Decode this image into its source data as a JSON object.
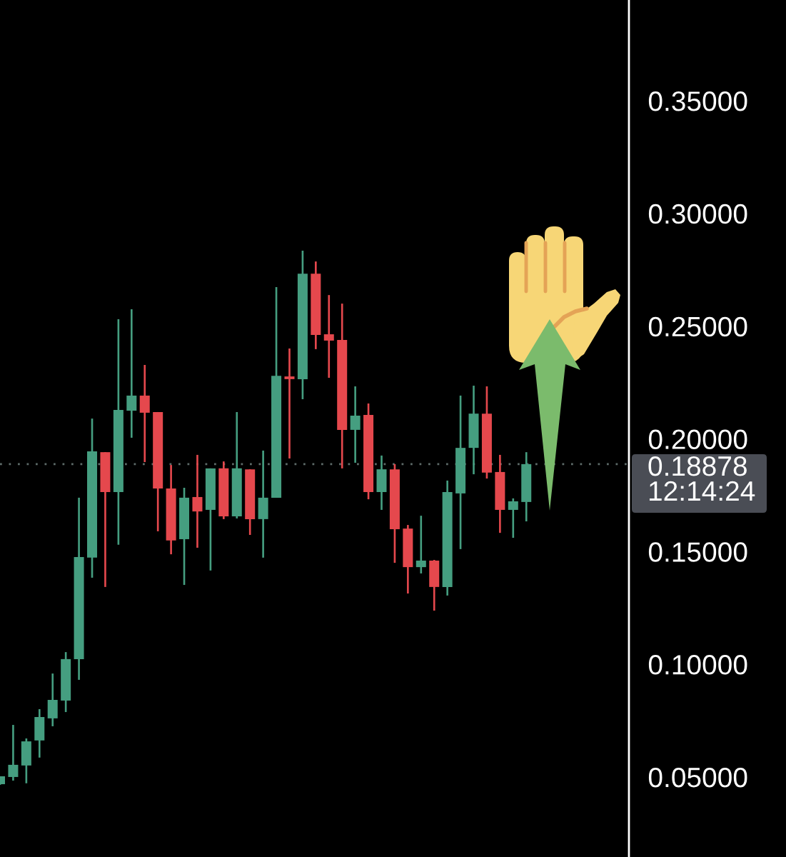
{
  "chart_data": {
    "type": "candlestick",
    "categories": [
      null,
      null,
      null,
      null,
      null,
      null,
      null,
      null,
      null,
      null,
      null,
      null,
      null,
      null,
      null,
      null,
      null,
      null,
      null,
      null,
      null,
      null,
      null,
      null,
      null,
      null,
      null,
      null,
      null,
      null,
      null,
      null,
      null,
      null,
      null,
      null,
      null,
      null,
      null,
      null,
      null
    ],
    "ohlc": [
      [
        0.0468,
        0.0503,
        0.0465,
        0.0503
      ],
      [
        0.05,
        0.0731,
        0.0484,
        0.0554
      ],
      [
        0.0551,
        0.0671,
        0.0472,
        0.0658
      ],
      [
        0.0662,
        0.0801,
        0.0586,
        0.0766
      ],
      [
        0.076,
        0.0959,
        0.0725,
        0.0842
      ],
      [
        0.0839,
        0.1054,
        0.0788,
        0.1023
      ],
      [
        0.1023,
        0.1739,
        0.0931,
        0.1476
      ],
      [
        0.1473,
        0.209,
        0.1384,
        0.1945
      ],
      [
        0.1941,
        0.1941,
        0.1343,
        0.1764
      ],
      [
        0.1764,
        0.2531,
        0.153,
        0.2128
      ],
      [
        0.2125,
        0.2575,
        0.2005,
        0.2192
      ],
      [
        0.2192,
        0.2328,
        0.1897,
        0.2116
      ],
      [
        0.2119,
        0.2119,
        0.159,
        0.178
      ],
      [
        0.178,
        0.1884,
        0.1488,
        0.1549
      ],
      [
        0.1555,
        0.1783,
        0.1352,
        0.1739
      ],
      [
        0.1742,
        0.1929,
        0.1517,
        0.1678
      ],
      [
        0.1685,
        0.1869,
        0.1416,
        0.1869
      ],
      [
        0.1869,
        0.19,
        0.1644,
        0.1656
      ],
      [
        0.1656,
        0.2119,
        0.1647,
        0.1869
      ],
      [
        0.1865,
        0.1865,
        0.1574,
        0.1644
      ],
      [
        0.1644,
        0.1948,
        0.1473,
        0.1739
      ],
      [
        0.1739,
        0.2673,
        0.1739,
        0.228
      ],
      [
        0.2277,
        0.2401,
        0.1913,
        0.2265
      ],
      [
        0.2265,
        0.2835,
        0.2176,
        0.2733
      ],
      [
        0.2733,
        0.2787,
        0.2398,
        0.2461
      ],
      [
        0.2464,
        0.2638,
        0.2271,
        0.2436
      ],
      [
        0.2439,
        0.26,
        0.1869,
        0.204
      ],
      [
        0.204,
        0.2233,
        0.1894,
        0.2103
      ],
      [
        0.2106,
        0.2157,
        0.1732,
        0.1764
      ],
      [
        0.1764,
        0.1926,
        0.1685,
        0.1865
      ],
      [
        0.1865,
        0.1888,
        0.145,
        0.1599
      ],
      [
        0.1602,
        0.1618,
        0.1314,
        0.1431
      ],
      [
        0.1431,
        0.1659,
        0.1403,
        0.146
      ],
      [
        0.146,
        0.1463,
        0.1238,
        0.1343
      ],
      [
        0.1343,
        0.1815,
        0.1305,
        0.1764
      ],
      [
        0.1758,
        0.2192,
        0.1511,
        0.196
      ],
      [
        0.196,
        0.2236,
        0.1843,
        0.2112
      ],
      [
        0.2112,
        0.2233,
        0.1824,
        0.185
      ],
      [
        0.1853,
        0.1929,
        0.1583,
        0.1685
      ],
      [
        0.1685,
        0.1736,
        0.1561,
        0.1723
      ],
      [
        0.172,
        0.1941,
        0.1634,
        0.1888
      ]
    ],
    "colors": [
      "#459e80",
      "#459e80",
      "#459e80",
      "#459e80",
      "#459e80",
      "#459e80",
      "#459e80",
      "#459e80",
      "#e5484d",
      "#459e80",
      "#459e80",
      "#e5484d",
      "#e5484d",
      "#e5484d",
      "#459e80",
      "#e5484d",
      "#459e80",
      "#e5484d",
      "#459e80",
      "#e5484d",
      "#459e80",
      "#459e80",
      "#e5484d",
      "#459e80",
      "#e5484d",
      "#e5484d",
      "#e5484d",
      "#459e80",
      "#e5484d",
      "#459e80",
      "#e5484d",
      "#e5484d",
      "#459e80",
      "#e5484d",
      "#459e80",
      "#459e80",
      "#459e80",
      "#e5484d",
      "#e5484d",
      "#459e80",
      "#459e80"
    ],
    "ylim": [
      0.0145,
      0.3947
    ],
    "yticks": [
      {
        "value": 0.05,
        "label": "0.05000"
      },
      {
        "value": 0.1,
        "label": "0.10000"
      },
      {
        "value": 0.15,
        "label": "0.15000"
      },
      {
        "value": 0.2,
        "label": "0.20000"
      },
      {
        "value": 0.25,
        "label": "0.25000"
      },
      {
        "value": 0.3,
        "label": "0.30000"
      },
      {
        "value": 0.35,
        "label": "0.35000"
      }
    ],
    "tick_labels": "y",
    "ref_lines": [
      {
        "axis": "y",
        "value": 0.18878,
        "label": "0.18878\n12:14:24",
        "color": "#5d6a68",
        "line_style": "dotted"
      }
    ]
  }
}
